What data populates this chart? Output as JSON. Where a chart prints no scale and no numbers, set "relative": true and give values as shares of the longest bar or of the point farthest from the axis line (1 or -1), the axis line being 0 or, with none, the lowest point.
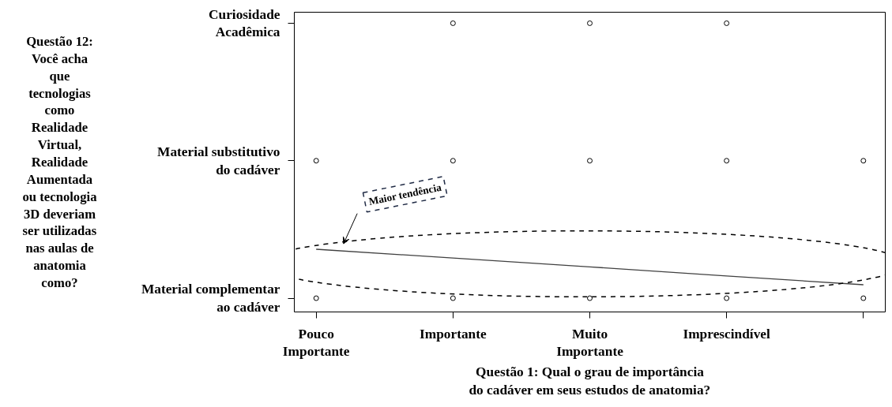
{
  "chart_data": {
    "type": "scatter",
    "xlabel": "Questão 1: Qual o grau de importância\ndo cadáver em seus estudos de anatomia?",
    "ylabel": "Questão 12:\nVocê acha\nque\ntecnologias\ncomo\nRealidade\nVirtual,\nRealidade\nAumentada\nou tecnologia\n3D deveriam\nser utilizadas\nnas aulas de\nanatomia\ncomo?",
    "categories": [
      "Pouco\nImportante",
      "Importante",
      "Muito\nImportante",
      "Imprescindível",
      null
    ],
    "y_categories": [
      "Curiosidade\nAcadêmica",
      "Material substitutivo\ndo cadáver",
      "Material complementar\nao cadáver"
    ],
    "relative": true,
    "series": [
      {
        "color": "#000000",
        "values": [
          null,
          1,
          1,
          1,
          null
        ]
      },
      {
        "color": "#000000",
        "values": [
          0.5,
          0.5,
          0.5,
          0.5,
          0.5
        ]
      },
      {
        "color": "#000000",
        "values": [
          0,
          0,
          0,
          0,
          0
        ]
      },
      {
        "type": "line",
        "marker": "none",
        "color": "#404040",
        "values": [
          0.178,
          0.146,
          0.114,
          0.081,
          0.049
        ]
      }
    ],
    "annotations": [
      "Maior tendência"
    ],
    "marker": "circle",
    "line_style": "solid"
  }
}
